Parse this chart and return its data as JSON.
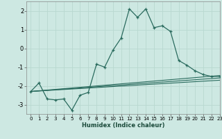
{
  "xlabel": "Humidex (Indice chaleur)",
  "bg_color": "#cde8e2",
  "line_color": "#2a6b5e",
  "grid_color": "#b8d8d0",
  "xlim": [
    -0.5,
    23
  ],
  "ylim": [
    -3.5,
    2.5
  ],
  "yticks": [
    -3,
    -2,
    -1,
    0,
    1,
    2
  ],
  "xticks": [
    0,
    1,
    2,
    3,
    4,
    5,
    6,
    7,
    8,
    9,
    10,
    11,
    12,
    13,
    14,
    15,
    16,
    17,
    18,
    19,
    20,
    21,
    22,
    23
  ],
  "line1_x": [
    0,
    1,
    2,
    3,
    4,
    5,
    6,
    7,
    8,
    9,
    10,
    11,
    12,
    13,
    14,
    15,
    16,
    17,
    18,
    19,
    20,
    21,
    22,
    23
  ],
  "line1_y": [
    -2.3,
    -1.85,
    -2.7,
    -2.75,
    -2.7,
    -3.3,
    -2.5,
    -2.35,
    -0.85,
    -1.0,
    -0.1,
    0.55,
    2.1,
    1.65,
    2.1,
    1.1,
    1.2,
    0.9,
    -0.65,
    -0.9,
    -1.2,
    -1.4,
    -1.5,
    -1.5
  ],
  "line2_x": [
    0,
    23
  ],
  "line2_y": [
    -2.3,
    -1.45
  ],
  "line3_x": [
    0,
    23
  ],
  "line3_y": [
    -2.3,
    -1.58
  ],
  "line4_x": [
    0,
    23
  ],
  "line4_y": [
    -2.3,
    -1.7
  ]
}
